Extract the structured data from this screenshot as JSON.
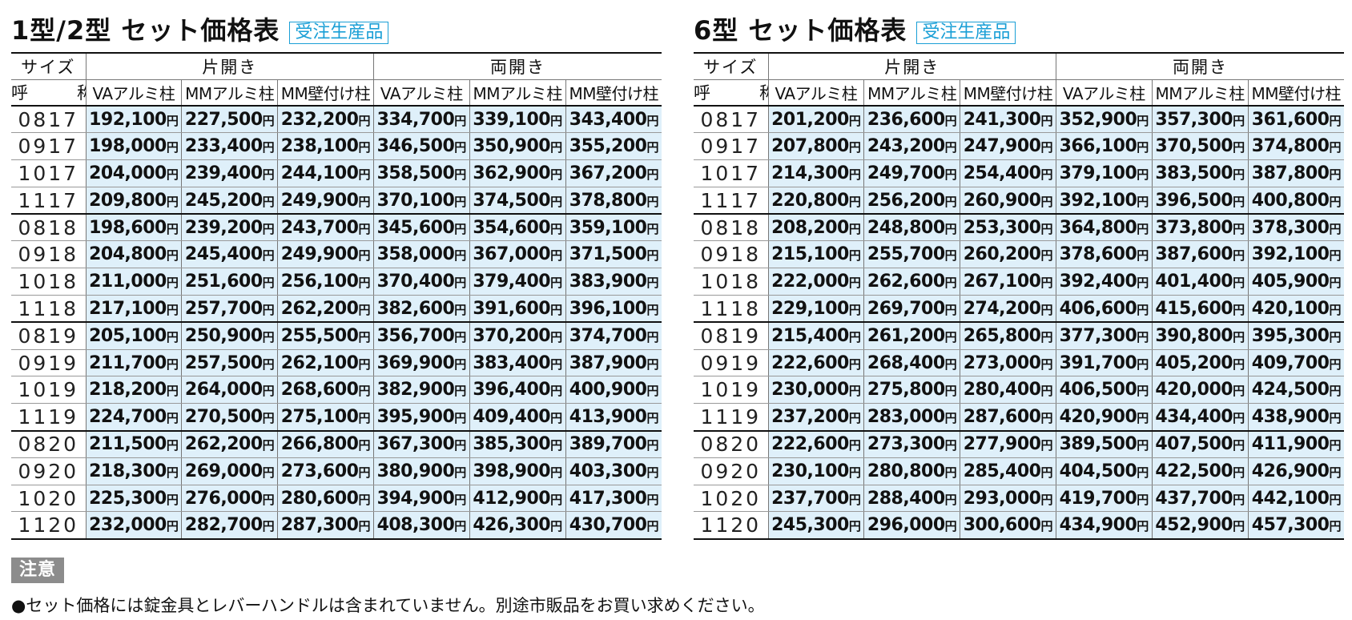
{
  "tables": [
    {
      "title": "1型/2型 セット価格表",
      "badge": "受注生産品",
      "header": {
        "size_label": "サイズ",
        "name_label": "呼　称",
        "groups": [
          "片開き",
          "両開き"
        ],
        "columns": [
          "VAアルミ柱",
          "MMアルミ柱",
          "MM壁付け柱",
          "VAアルミ柱",
          "MMアルミ柱",
          "MM壁付け柱"
        ]
      },
      "rows": [
        {
          "size": "0817",
          "prices": [
            "192,100",
            "227,500",
            "232,200",
            "334,700",
            "339,100",
            "343,400"
          ]
        },
        {
          "size": "0917",
          "prices": [
            "198,000",
            "233,400",
            "238,100",
            "346,500",
            "350,900",
            "355,200"
          ]
        },
        {
          "size": "1017",
          "prices": [
            "204,000",
            "239,400",
            "244,100",
            "358,500",
            "362,900",
            "367,200"
          ]
        },
        {
          "size": "1117",
          "prices": [
            "209,800",
            "245,200",
            "249,900",
            "370,100",
            "374,500",
            "378,800"
          ]
        },
        {
          "size": "0818",
          "prices": [
            "198,600",
            "239,200",
            "243,700",
            "345,600",
            "354,600",
            "359,100"
          ]
        },
        {
          "size": "0918",
          "prices": [
            "204,800",
            "245,400",
            "249,900",
            "358,000",
            "367,000",
            "371,500"
          ]
        },
        {
          "size": "1018",
          "prices": [
            "211,000",
            "251,600",
            "256,100",
            "370,400",
            "379,400",
            "383,900"
          ]
        },
        {
          "size": "1118",
          "prices": [
            "217,100",
            "257,700",
            "262,200",
            "382,600",
            "391,600",
            "396,100"
          ]
        },
        {
          "size": "0819",
          "prices": [
            "205,100",
            "250,900",
            "255,500",
            "356,700",
            "370,200",
            "374,700"
          ]
        },
        {
          "size": "0919",
          "prices": [
            "211,700",
            "257,500",
            "262,100",
            "369,900",
            "383,400",
            "387,900"
          ]
        },
        {
          "size": "1019",
          "prices": [
            "218,200",
            "264,000",
            "268,600",
            "382,900",
            "396,400",
            "400,900"
          ]
        },
        {
          "size": "1119",
          "prices": [
            "224,700",
            "270,500",
            "275,100",
            "395,900",
            "409,400",
            "413,900"
          ]
        },
        {
          "size": "0820",
          "prices": [
            "211,500",
            "262,200",
            "266,800",
            "367,300",
            "385,300",
            "389,700"
          ]
        },
        {
          "size": "0920",
          "prices": [
            "218,300",
            "269,000",
            "273,600",
            "380,900",
            "398,900",
            "403,300"
          ]
        },
        {
          "size": "1020",
          "prices": [
            "225,300",
            "276,000",
            "280,600",
            "394,900",
            "412,900",
            "417,300"
          ]
        },
        {
          "size": "1120",
          "prices": [
            "232,000",
            "282,700",
            "287,300",
            "408,300",
            "426,300",
            "430,700"
          ]
        }
      ]
    },
    {
      "title": "6型 セット価格表",
      "badge": "受注生産品",
      "header": {
        "size_label": "サイズ",
        "name_label": "呼　称",
        "groups": [
          "片開き",
          "両開き"
        ],
        "columns": [
          "VAアルミ柱",
          "MMアルミ柱",
          "MM壁付け柱",
          "VAアルミ柱",
          "MMアルミ柱",
          "MM壁付け柱"
        ]
      },
      "rows": [
        {
          "size": "0817",
          "prices": [
            "201,200",
            "236,600",
            "241,300",
            "352,900",
            "357,300",
            "361,600"
          ]
        },
        {
          "size": "0917",
          "prices": [
            "207,800",
            "243,200",
            "247,900",
            "366,100",
            "370,500",
            "374,800"
          ]
        },
        {
          "size": "1017",
          "prices": [
            "214,300",
            "249,700",
            "254,400",
            "379,100",
            "383,500",
            "387,800"
          ]
        },
        {
          "size": "1117",
          "prices": [
            "220,800",
            "256,200",
            "260,900",
            "392,100",
            "396,500",
            "400,800"
          ]
        },
        {
          "size": "0818",
          "prices": [
            "208,200",
            "248,800",
            "253,300",
            "364,800",
            "373,800",
            "378,300"
          ]
        },
        {
          "size": "0918",
          "prices": [
            "215,100",
            "255,700",
            "260,200",
            "378,600",
            "387,600",
            "392,100"
          ]
        },
        {
          "size": "1018",
          "prices": [
            "222,000",
            "262,600",
            "267,100",
            "392,400",
            "401,400",
            "405,900"
          ]
        },
        {
          "size": "1118",
          "prices": [
            "229,100",
            "269,700",
            "274,200",
            "406,600",
            "415,600",
            "420,100"
          ]
        },
        {
          "size": "0819",
          "prices": [
            "215,400",
            "261,200",
            "265,800",
            "377,300",
            "390,800",
            "395,300"
          ]
        },
        {
          "size": "0919",
          "prices": [
            "222,600",
            "268,400",
            "273,000",
            "391,700",
            "405,200",
            "409,700"
          ]
        },
        {
          "size": "1019",
          "prices": [
            "230,000",
            "275,800",
            "280,400",
            "406,500",
            "420,000",
            "424,500"
          ]
        },
        {
          "size": "1119",
          "prices": [
            "237,200",
            "283,000",
            "287,600",
            "420,900",
            "434,400",
            "438,900"
          ]
        },
        {
          "size": "0820",
          "prices": [
            "222,600",
            "273,300",
            "277,900",
            "389,500",
            "407,500",
            "411,900"
          ]
        },
        {
          "size": "0920",
          "prices": [
            "230,100",
            "280,800",
            "285,400",
            "404,500",
            "422,500",
            "426,900"
          ]
        },
        {
          "size": "1020",
          "prices": [
            "237,700",
            "288,400",
            "293,000",
            "419,700",
            "437,700",
            "442,100"
          ]
        },
        {
          "size": "1120",
          "prices": [
            "245,300",
            "296,000",
            "300,600",
            "434,900",
            "452,900",
            "457,300"
          ]
        }
      ]
    }
  ],
  "currency_suffix": "円",
  "notice": {
    "label": "注意",
    "text": "●セット価格には錠金具とレバーハンドルは含まれていません。別途市販品をお買い求めください。"
  }
}
